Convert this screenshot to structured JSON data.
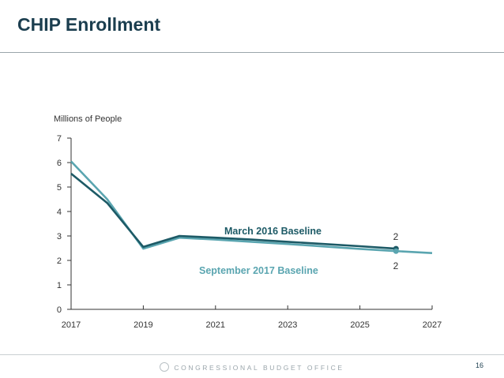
{
  "slide": {
    "title": "CHIP Enrollment",
    "footer": "CONGRESSIONAL BUDGET OFFICE",
    "page_number": "16"
  },
  "colors": {
    "title": "#1b3e4f",
    "march_2016": "#1d5a66",
    "september_2017": "#5aa5b0",
    "axis": "#333333"
  },
  "chart_data": {
    "type": "line",
    "title": "",
    "xlabel": "",
    "ylabel": "Millions of People",
    "xlim": [
      2017,
      2027
    ],
    "ylim": [
      0,
      7
    ],
    "x_ticks": [
      2017,
      2019,
      2021,
      2023,
      2025,
      2027
    ],
    "y_ticks": [
      0,
      1,
      2,
      3,
      4,
      5,
      6,
      7
    ],
    "series": [
      {
        "name": "March 2016 Baseline",
        "x": [
          2017,
          2018,
          2019,
          2020,
          2021,
          2022,
          2023,
          2024,
          2025,
          2026
        ],
        "values": [
          5.55,
          4.35,
          2.55,
          3.0,
          2.93,
          2.85,
          2.76,
          2.67,
          2.58,
          2.48
        ],
        "end_label": "2"
      },
      {
        "name": "September 2017 Baseline",
        "x": [
          2017,
          2018,
          2019,
          2020,
          2021,
          2022,
          2023,
          2024,
          2025,
          2026,
          2027
        ],
        "values": [
          6.05,
          4.5,
          2.48,
          2.93,
          2.85,
          2.76,
          2.67,
          2.57,
          2.47,
          2.38,
          2.3
        ],
        "end_label": "2"
      }
    ]
  }
}
